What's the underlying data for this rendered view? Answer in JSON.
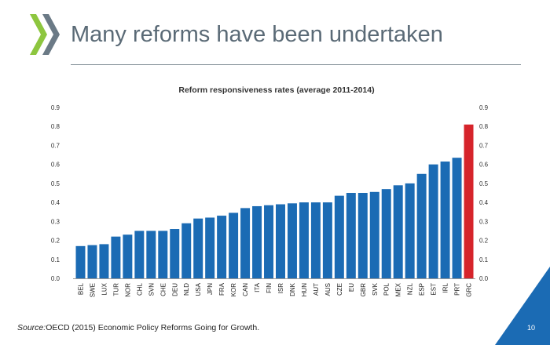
{
  "slide": {
    "title": "Many reforms have been undertaken",
    "source_label": "Source:",
    "source_text": "OECD (2015) Economic Policy Reforms Going for Growth.",
    "page_number": "10"
  },
  "colors": {
    "bar": "#1b6bb4",
    "highlight_bar": "#d6242b",
    "logo_light": "#8dc63f",
    "logo_dark": "#6b7a86",
    "corner": "#1b6bb4"
  },
  "chart_data": {
    "type": "bar",
    "title": "Reform responsiveness rates (average 2011-2014)",
    "xlabel": "",
    "ylabel": "",
    "ylim": [
      0,
      0.9
    ],
    "yticks": [
      "0.0",
      "0.1",
      "0.2",
      "0.3",
      "0.4",
      "0.5",
      "0.6",
      "0.7",
      "0.8",
      "0.9"
    ],
    "right_axis": true,
    "grid": false,
    "legend": "none",
    "highlight_category": "GRC",
    "categories": [
      "BEL",
      "SWE",
      "LUX",
      "TUR",
      "NOR",
      "CHL",
      "SVN",
      "CHE",
      "DEU",
      "NLD",
      "USA",
      "JPN",
      "FRA",
      "KOR",
      "CAN",
      "ITA",
      "FIN",
      "ISR",
      "DNK",
      "HUN",
      "AUT",
      "AUS",
      "CZE",
      "EU",
      "GBR",
      "SVK",
      "POL",
      "MEX",
      "NZL",
      "ESP",
      "EST",
      "IRL",
      "PRT",
      "GRC"
    ],
    "values": [
      0.17,
      0.175,
      0.18,
      0.22,
      0.23,
      0.25,
      0.25,
      0.25,
      0.26,
      0.29,
      0.315,
      0.32,
      0.33,
      0.345,
      0.37,
      0.38,
      0.385,
      0.39,
      0.395,
      0.4,
      0.4,
      0.4,
      0.435,
      0.45,
      0.45,
      0.455,
      0.47,
      0.49,
      0.5,
      0.55,
      0.6,
      0.615,
      0.635,
      0.81
    ]
  }
}
